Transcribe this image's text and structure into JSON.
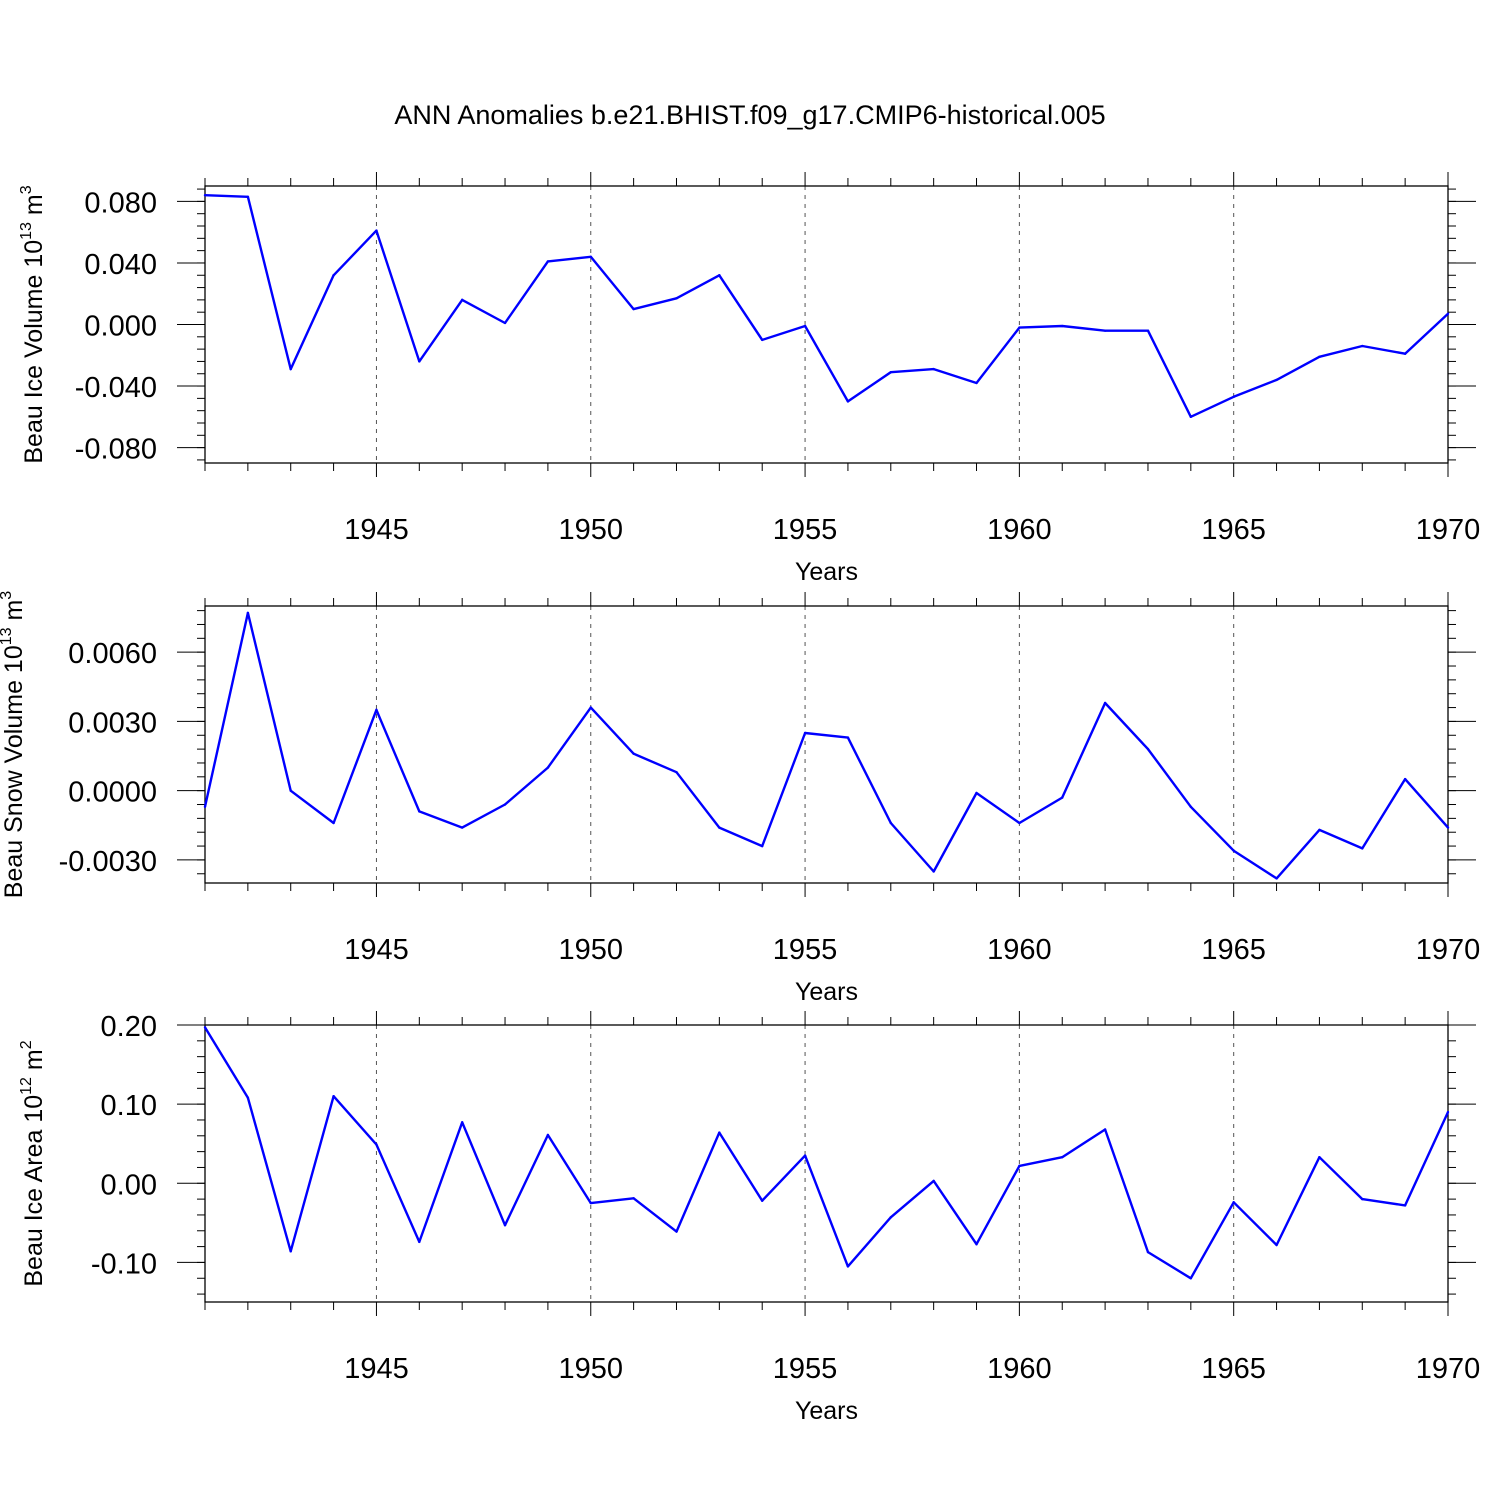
{
  "title": "ANN Anomalies b.e21.BHIST.f09_g17.CMIP6-historical.005",
  "colors": {
    "line": "#0000ff",
    "axis": "#000000",
    "grid": "#000000"
  },
  "chart_data": [
    {
      "type": "line",
      "ylabel_text": "Beau Ice Volume 10",
      "ylabel_exp": "13",
      "ylabel_unit": "m",
      "ylabel_unit_exp": "3",
      "xlabel": "Years",
      "xlim": [
        1941,
        1970
      ],
      "ylim": [
        -0.09,
        0.09
      ],
      "yticks": [
        -0.08,
        -0.04,
        0.0,
        0.04,
        0.08
      ],
      "ytick_labels": [
        "-0.080",
        "-0.040",
        "0.000",
        "0.040",
        "0.080"
      ],
      "xticks": [
        1945,
        1950,
        1955,
        1960,
        1965,
        1970
      ],
      "xtick_labels": [
        "1945",
        "1950",
        "1955",
        "1960",
        "1965",
        "1970"
      ],
      "grid": "vertical dashed at major x ticks",
      "x": [
        1941,
        1942,
        1943,
        1944,
        1945,
        1946,
        1947,
        1948,
        1949,
        1950,
        1951,
        1952,
        1953,
        1954,
        1955,
        1956,
        1957,
        1958,
        1959,
        1960,
        1961,
        1962,
        1963,
        1964,
        1965,
        1966,
        1967,
        1968,
        1969,
        1970
      ],
      "values": [
        0.084,
        0.083,
        -0.029,
        0.032,
        0.061,
        -0.024,
        0.016,
        0.001,
        0.041,
        0.044,
        0.01,
        0.017,
        0.032,
        -0.01,
        -0.001,
        -0.05,
        -0.031,
        -0.029,
        -0.038,
        -0.002,
        -0.001,
        -0.004,
        -0.004,
        -0.06,
        -0.047,
        -0.036,
        -0.021,
        -0.014,
        -0.019,
        0.007
      ]
    },
    {
      "type": "line",
      "ylabel_text": "Beau Snow Volume 10",
      "ylabel_exp": "13",
      "ylabel_unit": "m",
      "ylabel_unit_exp": "3",
      "xlabel": "Years",
      "xlim": [
        1941,
        1970
      ],
      "ylim": [
        -0.004,
        0.008
      ],
      "yticks": [
        -0.003,
        0.0,
        0.003,
        0.006
      ],
      "ytick_labels": [
        "-0.0030",
        "0.0000",
        "0.0030",
        "0.0060"
      ],
      "xticks": [
        1945,
        1950,
        1955,
        1960,
        1965,
        1970
      ],
      "xtick_labels": [
        "1945",
        "1950",
        "1955",
        "1960",
        "1965",
        "1970"
      ],
      "grid": "vertical dashed at major x ticks",
      "x": [
        1941,
        1942,
        1943,
        1944,
        1945,
        1946,
        1947,
        1948,
        1949,
        1950,
        1951,
        1952,
        1953,
        1954,
        1955,
        1956,
        1957,
        1958,
        1959,
        1960,
        1961,
        1962,
        1963,
        1964,
        1965,
        1966,
        1967,
        1968,
        1969,
        1970
      ],
      "values": [
        -0.0007,
        0.0077,
        0.0,
        -0.0014,
        0.0035,
        -0.0009,
        -0.0016,
        -0.0006,
        0.001,
        0.0036,
        0.0016,
        0.0008,
        -0.0016,
        -0.0024,
        0.0025,
        0.0023,
        -0.0014,
        -0.0035,
        -0.0001,
        -0.0014,
        -0.0003,
        0.0038,
        0.0018,
        -0.0007,
        -0.0026,
        -0.0038,
        -0.0017,
        -0.0025,
        0.0005,
        -0.0016
      ]
    },
    {
      "type": "line",
      "ylabel_text": "Beau Ice Area 10",
      "ylabel_exp": "12",
      "ylabel_unit": "m",
      "ylabel_unit_exp": "2",
      "xlabel": "Years",
      "xlim": [
        1941,
        1970
      ],
      "ylim": [
        -0.15,
        0.2
      ],
      "yticks": [
        -0.1,
        0.0,
        0.1,
        0.2
      ],
      "ytick_labels": [
        "-0.10",
        "0.00",
        "0.10",
        "0.20"
      ],
      "xticks": [
        1945,
        1950,
        1955,
        1960,
        1965,
        1970
      ],
      "xtick_labels": [
        "1945",
        "1950",
        "1955",
        "1960",
        "1965",
        "1970"
      ],
      "grid": "vertical dashed at major x ticks",
      "x": [
        1941,
        1942,
        1943,
        1944,
        1945,
        1946,
        1947,
        1948,
        1949,
        1950,
        1951,
        1952,
        1953,
        1954,
        1955,
        1956,
        1957,
        1958,
        1959,
        1960,
        1961,
        1962,
        1963,
        1964,
        1965,
        1966,
        1967,
        1968,
        1969,
        1970
      ],
      "values": [
        0.197,
        0.108,
        -0.086,
        0.11,
        0.049,
        -0.074,
        0.077,
        -0.053,
        0.061,
        -0.025,
        -0.019,
        -0.061,
        0.064,
        -0.022,
        0.035,
        -0.105,
        -0.043,
        0.003,
        -0.077,
        0.022,
        0.033,
        0.068,
        -0.087,
        -0.12,
        -0.024,
        -0.078,
        0.033,
        -0.02,
        -0.028,
        0.09
      ]
    }
  ]
}
